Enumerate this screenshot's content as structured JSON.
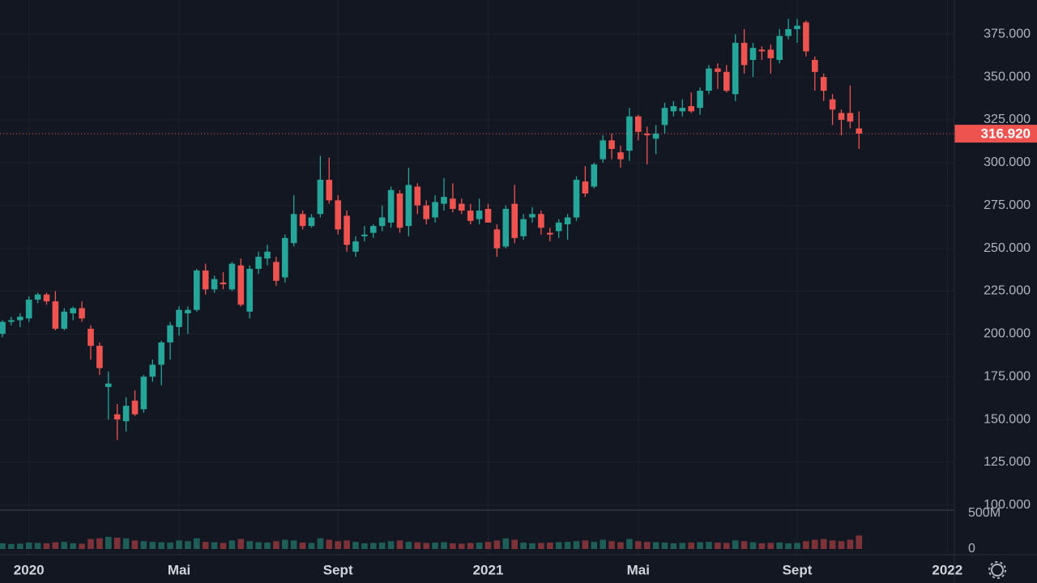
{
  "chart_data": {
    "type": "candlestick",
    "categories": [
      null,
      null,
      null,
      "2020",
      null,
      null,
      null,
      null,
      null,
      null,
      null,
      null,
      null,
      null,
      null,
      null,
      null,
      null,
      null,
      null,
      "Mai",
      null,
      null,
      null,
      null,
      null,
      null,
      null,
      null,
      null,
      null,
      null,
      null,
      null,
      null,
      null,
      null,
      null,
      "Sept",
      null,
      null,
      null,
      null,
      null,
      null,
      null,
      null,
      null,
      null,
      null,
      null,
      null,
      null,
      null,
      null,
      "2021",
      null,
      null,
      null,
      null,
      null,
      null,
      null,
      null,
      null,
      null,
      null,
      null,
      null,
      null,
      null,
      null,
      "Mai",
      null,
      null,
      null,
      null,
      null,
      null,
      null,
      null,
      null,
      null,
      null,
      null,
      null,
      null,
      null,
      null,
      null,
      "Sept",
      null,
      null,
      null,
      null,
      null,
      null,
      null,
      null,
      null,
      null,
      null,
      null,
      null,
      null,
      null,
      null,
      "2022"
    ],
    "open": [
      200,
      207,
      208,
      209,
      220,
      223,
      219,
      203,
      212,
      215,
      203,
      193,
      169,
      153,
      149,
      161,
      156,
      175,
      182,
      195,
      204,
      212,
      214,
      237,
      226,
      230,
      226,
      240,
      213,
      238,
      244,
      242,
      233,
      253,
      270,
      263,
      270,
      290,
      278,
      269,
      248,
      257,
      259,
      263,
      265,
      282,
      263,
      286,
      275,
      268,
      276,
      279,
      276,
      272,
      267,
      273,
      261,
      251,
      276,
      257,
      268,
      270,
      259,
      260,
      264,
      268,
      289,
      286,
      302,
      313,
      306,
      307,
      327,
      317,
      314,
      322,
      330,
      330,
      333,
      332,
      342,
      355,
      353,
      340,
      370,
      360,
      366,
      366,
      360,
      374,
      378,
      382,
      360,
      350,
      337,
      329,
      329,
      320,
      null,
      null,
      null,
      null,
      null,
      null,
      null,
      null,
      null,
      null
    ],
    "high": [
      208,
      210,
      212,
      222,
      224,
      224,
      225,
      215,
      216,
      219,
      205,
      195,
      178,
      159,
      163,
      167,
      176,
      185,
      196,
      207,
      216,
      216,
      238,
      241,
      234,
      236,
      242,
      244,
      240,
      248,
      252,
      245,
      258,
      281,
      272,
      270,
      304,
      303,
      281,
      272,
      257,
      263,
      264,
      275,
      286,
      284,
      297,
      288,
      278,
      281,
      291,
      288,
      279,
      276,
      279,
      276,
      264,
      275,
      287,
      270,
      274,
      272,
      262,
      267,
      270,
      292,
      298,
      300,
      316,
      317,
      310,
      332,
      328,
      321,
      322,
      335,
      336,
      337,
      341,
      344,
      357,
      358,
      357,
      375,
      378,
      370,
      368,
      369,
      378,
      384,
      384,
      383,
      362,
      352,
      340,
      331,
      345,
      330,
      null,
      null,
      null,
      null,
      null,
      null,
      null,
      null,
      null,
      null
    ],
    "low": [
      198,
      205,
      204,
      207,
      218,
      217,
      202,
      202,
      208,
      207,
      185,
      176,
      150,
      138,
      143,
      152,
      154,
      172,
      170,
      185,
      199,
      200,
      213,
      223,
      224,
      226,
      225,
      216,
      209,
      235,
      240,
      228,
      230,
      251,
      261,
      262,
      268,
      276,
      258,
      248,
      245,
      254,
      256,
      260,
      262,
      259,
      257,
      270,
      264,
      265,
      272,
      271,
      270,
      264,
      264,
      265,
      245,
      250,
      253,
      255,
      265,
      258,
      254,
      256,
      255,
      266,
      280,
      285,
      300,
      302,
      297,
      301,
      313,
      299,
      305,
      317,
      327,
      327,
      329,
      328,
      340,
      343,
      341,
      336,
      352,
      350,
      360,
      352,
      358,
      372,
      370,
      362,
      342,
      336,
      322,
      316,
      320,
      308,
      null,
      null,
      null,
      null,
      null,
      null,
      null,
      null,
      null,
      null
    ],
    "close": [
      207,
      208,
      210,
      220,
      223,
      219,
      203,
      213,
      215,
      209,
      193,
      180,
      171,
      150,
      158,
      153,
      175,
      182,
      195,
      205,
      214,
      214,
      237,
      226,
      232,
      229,
      241,
      217,
      238,
      245,
      248,
      231,
      256,
      270,
      263,
      268,
      290,
      278,
      261,
      252,
      254,
      258,
      263,
      268,
      284,
      262,
      287,
      275,
      267,
      277,
      280,
      273,
      272,
      266,
      272,
      265,
      250,
      273,
      256,
      267,
      270,
      262,
      258,
      265,
      268,
      290,
      282,
      299,
      313,
      308,
      302,
      327,
      318,
      316,
      317,
      332,
      333,
      332,
      330,
      342,
      355,
      353,
      342,
      370,
      357,
      367,
      365,
      361,
      374,
      378,
      380,
      365,
      353,
      342,
      331,
      325,
      324,
      316.92,
      null,
      null,
      null,
      null,
      null,
      null,
      null,
      null,
      null,
      null
    ],
    "up_color": "#26a69a",
    "down_color": "#ef5350",
    "ylim": [
      98,
      395
    ],
    "yticks": [
      {
        "value": 100,
        "label": "100.000"
      },
      {
        "value": 125,
        "label": "125.000"
      },
      {
        "value": 150,
        "label": "150.000"
      },
      {
        "value": 175,
        "label": "175.000"
      },
      {
        "value": 200,
        "label": "200.000"
      },
      {
        "value": 225,
        "label": "225.000"
      },
      {
        "value": 250,
        "label": "250.000"
      },
      {
        "value": 275,
        "label": "275.000"
      },
      {
        "value": 300,
        "label": "300.000"
      },
      {
        "value": 325,
        "label": "325.000"
      },
      {
        "value": 350,
        "label": "350.000"
      },
      {
        "value": 375,
        "label": "375.000"
      }
    ],
    "grid": true,
    "last_price": {
      "value": 316.92,
      "label": "316.920",
      "color": "#ef5350"
    },
    "volume": {
      "values": [
        80,
        70,
        75,
        90,
        85,
        80,
        95,
        100,
        80,
        75,
        140,
        150,
        170,
        160,
        150,
        120,
        110,
        100,
        95,
        90,
        120,
        110,
        150,
        100,
        95,
        85,
        120,
        140,
        110,
        95,
        90,
        110,
        130,
        120,
        90,
        85,
        150,
        130,
        110,
        120,
        100,
        80,
        85,
        90,
        110,
        120,
        100,
        95,
        85,
        90,
        95,
        80,
        75,
        85,
        90,
        100,
        120,
        150,
        130,
        90,
        80,
        85,
        90,
        95,
        100,
        110,
        120,
        100,
        130,
        110,
        95,
        140,
        110,
        100,
        95,
        90,
        80,
        85,
        90,
        95,
        100,
        90,
        85,
        120,
        110,
        95,
        80,
        85,
        90,
        80,
        85,
        110,
        130,
        140,
        120,
        110,
        130,
        190,
        null,
        null,
        null,
        null,
        null,
        null,
        null,
        null,
        null,
        null
      ],
      "ylim": [
        0,
        534
      ],
      "yticks": [
        0,
        {
          "value": 500,
          "label": "500M"
        }
      ],
      "up_color": "#1f5e58",
      "down_color": "#7c3237"
    }
  }
}
